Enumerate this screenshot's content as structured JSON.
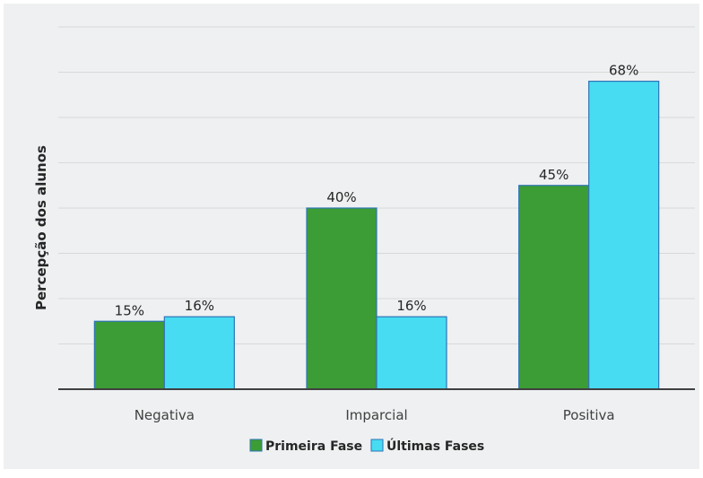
{
  "chart_data": {
    "type": "bar",
    "title": "",
    "xlabel": "",
    "ylabel": "Percepção dos alunos",
    "categories": [
      "Negativa",
      "Imparcial",
      "Positiva"
    ],
    "series": [
      {
        "name": "Primeira Fase",
        "values": [
          15,
          40,
          45
        ],
        "labels": [
          "15%",
          "40%",
          "45%"
        ],
        "color": "#3c9c35"
      },
      {
        "name": "Últimas Fases",
        "values": [
          16,
          16,
          68
        ],
        "labels": [
          "16%",
          "16%",
          "68%"
        ],
        "color": "#47dcf2"
      }
    ],
    "ylim": [
      0,
      80
    ],
    "grid": true,
    "legend": "bottom"
  },
  "colors": {
    "background": "#eef0f1",
    "grid": "#d9d9d9",
    "axis": "#404040",
    "bar_border": "#2e75b6"
  }
}
